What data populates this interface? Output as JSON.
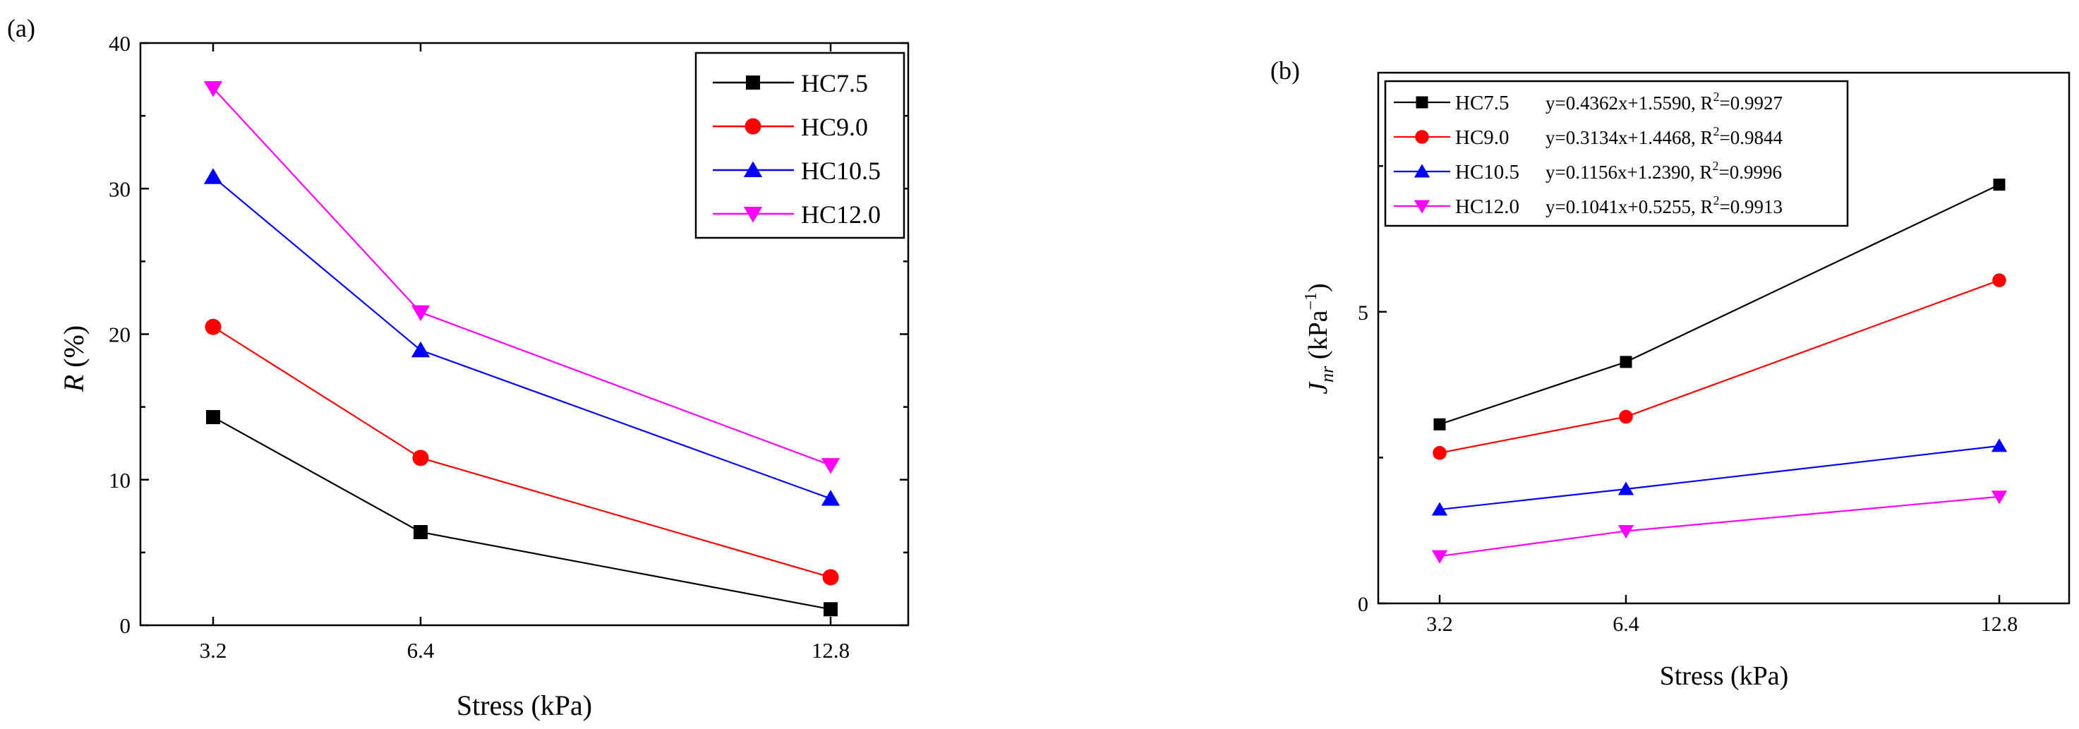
{
  "colors": {
    "HC7.5": "#000000",
    "HC9.0": "#ff0000",
    "HC10.5": "#0000ff",
    "HC12.0": "#ff00ff"
  },
  "chart_data": [
    {
      "type": "line",
      "panel_label": "(a)",
      "xlabel": "Stress (kPa)",
      "ylabel_italic": "R",
      "ylabel_rest": " (%)",
      "x": [
        3.2,
        6.4,
        12.8
      ],
      "x_tick_labels": [
        "3.2",
        "6.4",
        "12.8"
      ],
      "ylim": [
        0,
        40
      ],
      "y_ticks": [
        0,
        10,
        20,
        30,
        40
      ],
      "y_tick_labels": [
        "0",
        "10",
        "20",
        "30",
        "40"
      ],
      "legend_position": "top-right",
      "series": [
        {
          "name": "HC7.5",
          "marker": "square",
          "values": [
            14.3,
            6.4,
            1.1
          ]
        },
        {
          "name": "HC9.0",
          "marker": "circle",
          "values": [
            20.5,
            11.5,
            3.3
          ]
        },
        {
          "name": "HC10.5",
          "marker": "triangle-up",
          "values": [
            30.8,
            18.9,
            8.7
          ]
        },
        {
          "name": "HC12.0",
          "marker": "triangle-down",
          "values": [
            36.9,
            21.5,
            11.0
          ]
        }
      ]
    },
    {
      "type": "line",
      "panel_label": "(b)",
      "xlabel": "Stress (kPa)",
      "ylabel_main": "J",
      "ylabel_sub": "nr",
      "ylabel_unit": " (kPa",
      "ylabel_sup": "−1",
      "ylabel_close": ")",
      "x": [
        3.2,
        6.4,
        12.8
      ],
      "x_tick_labels": [
        "3.2",
        "6.4",
        "12.8"
      ],
      "ylim": [
        0,
        9.1
      ],
      "y_ticks": [
        0,
        5
      ],
      "y_tick_labels": [
        "0",
        "5"
      ],
      "legend_position": "top-left",
      "series": [
        {
          "name": "HC7.5",
          "marker": "square",
          "values": [
            3.07,
            4.14,
            7.18
          ],
          "eq": "y=0.4362x+1.5590,",
          "r2_label": "R",
          "r2_sup": "2",
          "r2_value": "=0.9927"
        },
        {
          "name": "HC9.0",
          "marker": "circle",
          "values": [
            2.58,
            3.2,
            5.54
          ],
          "eq": "y=0.3134x+1.4468,",
          "r2_label": "R",
          "r2_sup": "2",
          "r2_value": "=0.9844"
        },
        {
          "name": "HC10.5",
          "marker": "triangle-up",
          "values": [
            1.61,
            1.96,
            2.7
          ],
          "eq": "y=0.1156x+1.2390,",
          "r2_label": "R",
          "r2_sup": "2",
          "r2_value": "=0.9996"
        },
        {
          "name": "HC12.0",
          "marker": "triangle-down",
          "values": [
            0.81,
            1.24,
            1.83
          ],
          "eq": "y=0.1041x+0.5255,",
          "r2_label": "R",
          "r2_sup": "2",
          "r2_value": "=0.9913"
        }
      ]
    }
  ]
}
